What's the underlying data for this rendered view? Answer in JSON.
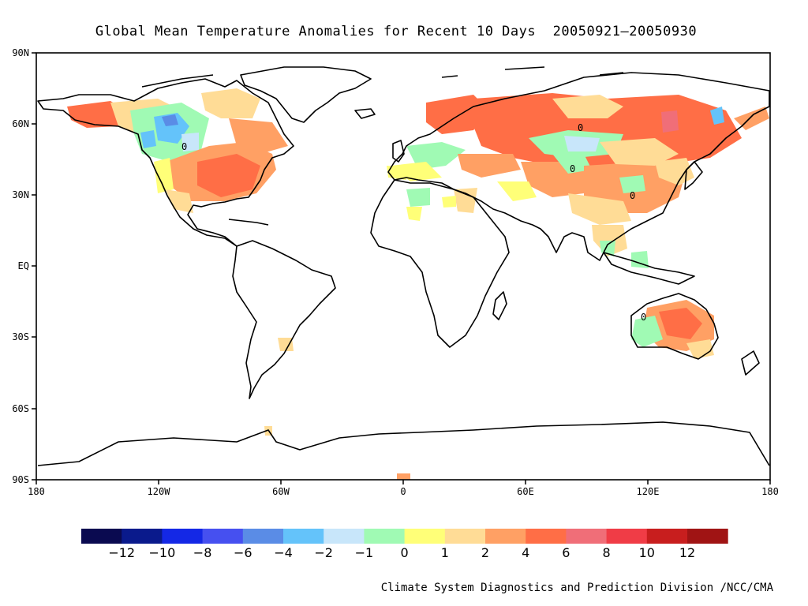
{
  "title": "Global Mean Temperature Anomalies for Recent 10 Days  20050921—20050930",
  "credit": "Climate System Diagnostics and Prediction Division /NCC/CMA",
  "lat_labels": [
    "90N",
    "60N",
    "30N",
    "EQ",
    "30S",
    "60S",
    "90S"
  ],
  "lon_labels": [
    "180",
    "120W",
    "60W",
    "0",
    "60E",
    "120E",
    "180"
  ],
  "colorbar": {
    "colors": [
      "#0a0a50",
      "#0a1a8c",
      "#1428e6",
      "#4650f0",
      "#5a8ce6",
      "#64c3fa",
      "#c8e6fa",
      "#a0fab4",
      "#ffff78",
      "#ffdc96",
      "#ffa064",
      "#ff6e46",
      "#f06e78",
      "#f03c46",
      "#c81e1e",
      "#a01414"
    ],
    "labels": [
      "−12",
      "−10",
      "−8",
      "−6",
      "−4",
      "−2",
      "−1",
      "0",
      "1",
      "2",
      "4",
      "6",
      "8",
      "10",
      "12"
    ]
  },
  "contour_labels": [
    "0",
    "0",
    "0",
    "0",
    "0"
  ]
}
